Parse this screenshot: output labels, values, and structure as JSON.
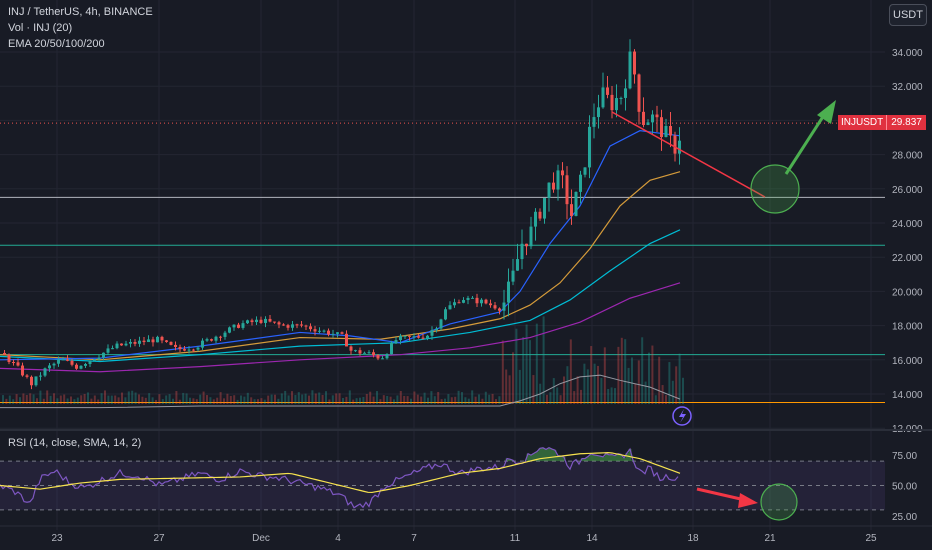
{
  "header": {
    "symbol_line": "INJ / TetherUS, 4h, BINANCE",
    "volume_line": "Vol · INJ (20)",
    "ema_line": "EMA 20/50/100/200"
  },
  "unit_button": "USDT",
  "price_tag": {
    "symbol": "INJUSDT",
    "value": "29.837"
  },
  "rsi_label": "RSI (14, close, SMA, 14, 2)",
  "colors": {
    "up": "#26a69a",
    "down": "#ef5350",
    "bg": "#181b25",
    "accent_green": "#4caf50",
    "accent_red": "#f23645"
  },
  "chart_data": [
    {
      "type": "candlestick",
      "x_labels": [
        "23",
        "27",
        "Dec",
        "4",
        "7",
        "11",
        "14",
        "18",
        "21",
        "25"
      ],
      "y_ticks": [
        "34.000",
        "32.000",
        "30.000",
        "28.000",
        "26.000",
        "24.000",
        "22.000",
        "20.000",
        "18.000",
        "16.000",
        "14.000",
        "12.000"
      ],
      "ylim": [
        12,
        35
      ],
      "last_price": 29.837,
      "horizontal_levels": [
        {
          "value": 25.5,
          "color": "#b2b5be"
        },
        {
          "value": 22.7,
          "color": "#22ab94"
        },
        {
          "value": 16.3,
          "color": "#22ab94"
        },
        {
          "value": 13.5,
          "color": "#ff9800"
        }
      ],
      "price_keypoints": [
        [
          0,
          16.4
        ],
        [
          15,
          15.6
        ],
        [
          30,
          14.6
        ],
        [
          45,
          15.5
        ],
        [
          60,
          16.0
        ],
        [
          75,
          15.6
        ],
        [
          95,
          16.2
        ],
        [
          115,
          16.8
        ],
        [
          135,
          17.0
        ],
        [
          155,
          17.2
        ],
        [
          175,
          16.6
        ],
        [
          195,
          16.8
        ],
        [
          215,
          17.4
        ],
        [
          240,
          18.1
        ],
        [
          260,
          18.3
        ],
        [
          280,
          18.0
        ],
        [
          300,
          18.0
        ],
        [
          320,
          17.7
        ],
        [
          340,
          17.4
        ],
        [
          350,
          16.5
        ],
        [
          365,
          16.4
        ],
        [
          380,
          16.1
        ],
        [
          395,
          17.2
        ],
        [
          410,
          17.3
        ],
        [
          425,
          17.4
        ],
        [
          435,
          18.0
        ],
        [
          445,
          19.0
        ],
        [
          460,
          19.6
        ],
        [
          480,
          19.4
        ],
        [
          500,
          19.0
        ],
        [
          510,
          20.5
        ],
        [
          520,
          22.8
        ],
        [
          530,
          23.5
        ],
        [
          540,
          25.0
        ],
        [
          550,
          26.5
        ],
        [
          560,
          26.5
        ],
        [
          570,
          24.5
        ],
        [
          580,
          26.5
        ],
        [
          590,
          30.0
        ],
        [
          600,
          31.5
        ],
        [
          610,
          31.0
        ],
        [
          620,
          31.5
        ],
        [
          630,
          33.9
        ],
        [
          640,
          30.0
        ],
        [
          650,
          30.2
        ],
        [
          660,
          29.5
        ],
        [
          670,
          28.6
        ],
        [
          676,
          28.4
        ],
        [
          680,
          29.8
        ]
      ],
      "ema20": [
        [
          0,
          16.0
        ],
        [
          100,
          16.1
        ],
        [
          200,
          16.8
        ],
        [
          300,
          17.6
        ],
        [
          350,
          17.4
        ],
        [
          400,
          17.0
        ],
        [
          450,
          18.1
        ],
        [
          500,
          18.8
        ],
        [
          520,
          20.0
        ],
        [
          550,
          22.8
        ],
        [
          580,
          25.0
        ],
        [
          610,
          28.5
        ],
        [
          640,
          29.4
        ],
        [
          680,
          29.1
        ]
      ],
      "ema50": [
        [
          0,
          16.3
        ],
        [
          100,
          16.0
        ],
        [
          200,
          16.5
        ],
        [
          300,
          17.3
        ],
        [
          380,
          17.2
        ],
        [
          450,
          17.8
        ],
        [
          500,
          18.4
        ],
        [
          530,
          19.2
        ],
        [
          560,
          20.5
        ],
        [
          590,
          22.5
        ],
        [
          620,
          25.0
        ],
        [
          650,
          26.5
        ],
        [
          680,
          27.0
        ]
      ],
      "ema100": [
        [
          0,
          16.2
        ],
        [
          100,
          15.9
        ],
        [
          200,
          16.3
        ],
        [
          300,
          16.8
        ],
        [
          400,
          17.0
        ],
        [
          470,
          17.6
        ],
        [
          530,
          18.3
        ],
        [
          570,
          19.5
        ],
        [
          610,
          21.2
        ],
        [
          650,
          22.8
        ],
        [
          680,
          23.6
        ]
      ],
      "ema200": [
        [
          0,
          15.5
        ],
        [
          100,
          15.3
        ],
        [
          200,
          15.6
        ],
        [
          300,
          16.0
        ],
        [
          400,
          16.3
        ],
        [
          470,
          16.7
        ],
        [
          530,
          17.3
        ],
        [
          580,
          18.2
        ],
        [
          630,
          19.6
        ],
        [
          680,
          20.5
        ]
      ],
      "volume_ma": [
        [
          0,
          13.2
        ],
        [
          100,
          13.2
        ],
        [
          200,
          13.3
        ],
        [
          300,
          13.3
        ],
        [
          400,
          13.3
        ],
        [
          500,
          13.3
        ],
        [
          520,
          13.6
        ],
        [
          540,
          14.0
        ],
        [
          560,
          14.6
        ],
        [
          580,
          15.0
        ],
        [
          600,
          15.1
        ],
        [
          620,
          14.8
        ],
        [
          650,
          14.4
        ],
        [
          680,
          13.7
        ]
      ]
    },
    {
      "type": "line",
      "name": "RSI",
      "y_ticks": [
        "75.00",
        "50.00",
        "25.00"
      ],
      "ylim": [
        15,
        88
      ],
      "bands": [
        70,
        50,
        30
      ],
      "rsi": [
        [
          0,
          50
        ],
        [
          15,
          45
        ],
        [
          30,
          35
        ],
        [
          40,
          55
        ],
        [
          55,
          62
        ],
        [
          70,
          52
        ],
        [
          85,
          48
        ],
        [
          100,
          54
        ],
        [
          120,
          60
        ],
        [
          140,
          58
        ],
        [
          160,
          50
        ],
        [
          180,
          55
        ],
        [
          200,
          60
        ],
        [
          220,
          55
        ],
        [
          240,
          62
        ],
        [
          260,
          58
        ],
        [
          280,
          56
        ],
        [
          300,
          52
        ],
        [
          320,
          48
        ],
        [
          340,
          42
        ],
        [
          355,
          32
        ],
        [
          370,
          36
        ],
        [
          385,
          50
        ],
        [
          400,
          55
        ],
        [
          420,
          62
        ],
        [
          440,
          68
        ],
        [
          460,
          60
        ],
        [
          480,
          64
        ],
        [
          500,
          65
        ],
        [
          510,
          72
        ],
        [
          520,
          70
        ],
        [
          530,
          74
        ],
        [
          540,
          82
        ],
        [
          550,
          80
        ],
        [
          560,
          76
        ],
        [
          570,
          66
        ],
        [
          580,
          70
        ],
        [
          590,
          78
        ],
        [
          600,
          76
        ],
        [
          610,
          72
        ],
        [
          620,
          74
        ],
        [
          630,
          78
        ],
        [
          640,
          60
        ],
        [
          650,
          64
        ],
        [
          660,
          56
        ],
        [
          670,
          58
        ],
        [
          680,
          54
        ]
      ],
      "rsi_ma": [
        [
          0,
          50
        ],
        [
          40,
          47
        ],
        [
          80,
          52
        ],
        [
          120,
          55
        ],
        [
          180,
          56
        ],
        [
          240,
          57
        ],
        [
          290,
          60
        ],
        [
          330,
          52
        ],
        [
          370,
          44
        ],
        [
          410,
          50
        ],
        [
          460,
          60
        ],
        [
          500,
          64
        ],
        [
          540,
          72
        ],
        [
          580,
          76
        ],
        [
          610,
          77
        ],
        [
          640,
          72
        ],
        [
          680,
          60
        ]
      ]
    }
  ]
}
